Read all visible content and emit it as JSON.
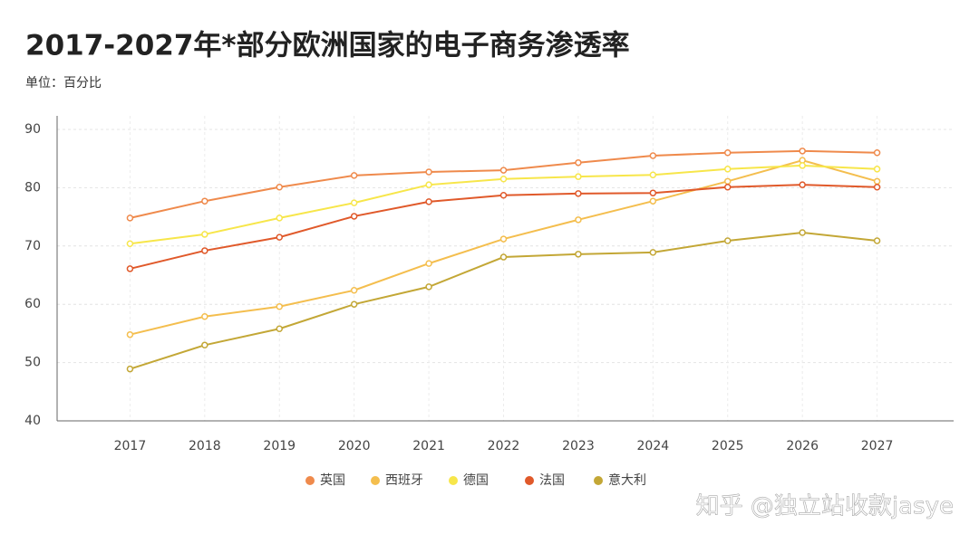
{
  "chart_data": {
    "type": "line",
    "title": "2017-2027年*部分欧洲国家的电子商务渗透率",
    "subtitle": "单位：百分比",
    "watermark": "知乎 @独立站收款jasye",
    "categories": [
      "2017",
      "2018",
      "2019",
      "2020",
      "2021",
      "2022",
      "2023",
      "2024",
      "2025",
      "2026",
      "2027"
    ],
    "series": [
      {
        "name": "英国",
        "color": "#ef8a4c",
        "values": [
          74.8,
          77.7,
          80.1,
          82.1,
          82.7,
          83.0,
          84.3,
          85.5,
          86.0,
          86.3,
          86.0
        ]
      },
      {
        "name": "西班牙",
        "color": "#f4be4e",
        "values": [
          54.8,
          57.9,
          59.6,
          62.4,
          67.0,
          71.2,
          74.5,
          77.7,
          81.1,
          84.7,
          81.1
        ]
      },
      {
        "name": "德国",
        "color": "#f7e64a",
        "values": [
          70.4,
          72.0,
          74.8,
          77.4,
          80.5,
          81.5,
          81.9,
          82.2,
          83.2,
          83.8,
          83.2
        ]
      },
      {
        "name": "法国",
        "color": "#e0592a",
        "values": [
          66.1,
          69.2,
          71.5,
          75.1,
          77.6,
          78.7,
          79.0,
          79.1,
          80.1,
          80.5,
          80.1
        ]
      },
      {
        "name": "意大利",
        "color": "#c3a736",
        "values": [
          48.9,
          53.0,
          55.8,
          60.0,
          63.0,
          68.1,
          68.6,
          68.9,
          70.9,
          72.3,
          70.9
        ]
      }
    ],
    "ylim": [
      40,
      90
    ],
    "yticks": [
      40,
      50,
      60,
      70,
      80,
      90
    ],
    "grid": true
  }
}
